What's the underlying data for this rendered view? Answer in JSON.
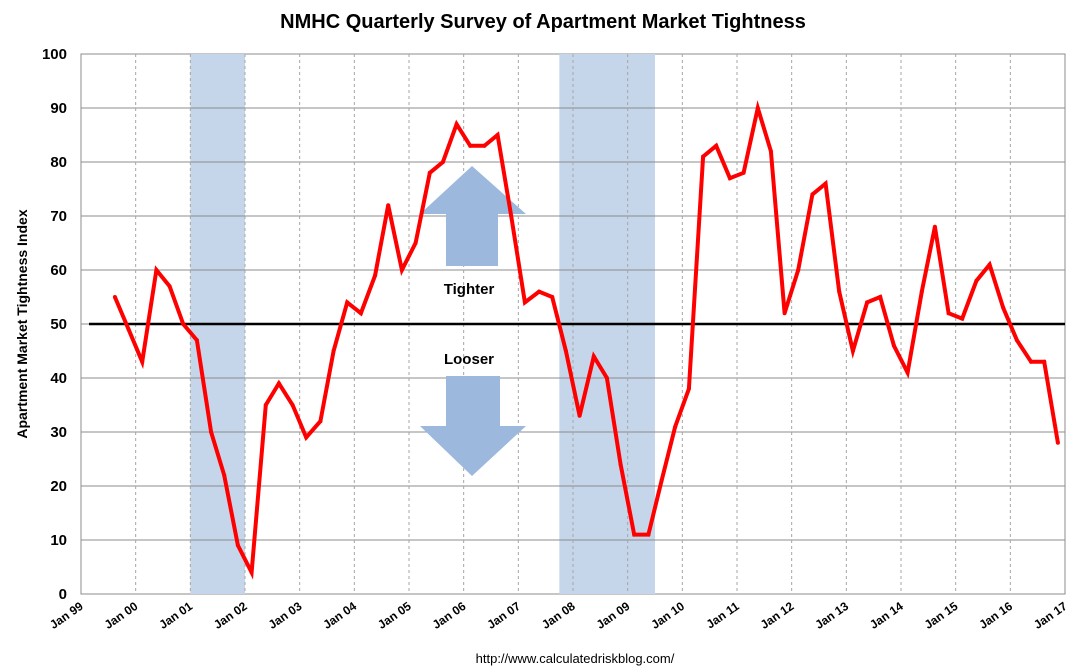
{
  "chart_data": {
    "type": "line",
    "title": "NMHC Quarterly Survey of Apartment Market Tightness",
    "ylabel": "Apartment Market Tightness Index",
    "xlabel": "",
    "ylim": [
      0,
      100
    ],
    "yticks": [
      0,
      10,
      20,
      30,
      40,
      50,
      60,
      70,
      80,
      90,
      100
    ],
    "xlim": [
      1999,
      2017
    ],
    "xticks": [
      {
        "value": 1999,
        "label": "Jan 99"
      },
      {
        "value": 2000,
        "label": "Jan 00"
      },
      {
        "value": 2001,
        "label": "Jan 01"
      },
      {
        "value": 2002,
        "label": "Jan 02"
      },
      {
        "value": 2003,
        "label": "Jan 03"
      },
      {
        "value": 2004,
        "label": "Jan 04"
      },
      {
        "value": 2005,
        "label": "Jan 05"
      },
      {
        "value": 2006,
        "label": "Jan 06"
      },
      {
        "value": 2007,
        "label": "Jan 07"
      },
      {
        "value": 2008,
        "label": "Jan 08"
      },
      {
        "value": 2009,
        "label": "Jan 09"
      },
      {
        "value": 2010,
        "label": "Jan 10"
      },
      {
        "value": 2011,
        "label": "Jan 11"
      },
      {
        "value": 2012,
        "label": "Jan 12"
      },
      {
        "value": 2013,
        "label": "Jan 13"
      },
      {
        "value": 2014,
        "label": "Jan 14"
      },
      {
        "value": 2015,
        "label": "Jan 15"
      },
      {
        "value": 2016,
        "label": "Jan 16"
      },
      {
        "value": 2017,
        "label": "Jan 17"
      }
    ],
    "grid": true,
    "series": [
      {
        "color": "#ff0000",
        "x": [
          1999.62,
          1999.87,
          2000.12,
          2000.38,
          2000.62,
          2000.87,
          2001.12,
          2001.38,
          2001.62,
          2001.87,
          2002.12,
          2002.38,
          2002.62,
          2002.87,
          2003.12,
          2003.38,
          2003.62,
          2003.87,
          2004.12,
          2004.38,
          2004.62,
          2004.87,
          2005.12,
          2005.38,
          2005.62,
          2005.87,
          2006.12,
          2006.38,
          2006.62,
          2006.87,
          2007.12,
          2007.38,
          2007.62,
          2007.87,
          2008.12,
          2008.38,
          2008.62,
          2008.87,
          2009.12,
          2009.38,
          2009.62,
          2009.87,
          2010.12,
          2010.38,
          2010.62,
          2010.87,
          2011.12,
          2011.38,
          2011.62,
          2011.87,
          2012.12,
          2012.38,
          2012.62,
          2012.87,
          2013.12,
          2013.38,
          2013.62,
          2013.87,
          2014.12,
          2014.38,
          2014.62,
          2014.87,
          2015.12,
          2015.38,
          2015.62,
          2015.87,
          2016.12,
          2016.38,
          2016.62,
          2016.87
        ],
        "y": [
          55,
          49,
          43,
          60,
          57,
          50,
          47,
          30,
          22,
          9,
          4,
          35,
          39,
          35,
          29,
          32,
          45,
          54,
          52,
          59,
          72,
          60,
          65,
          78,
          80,
          87,
          83,
          83,
          85,
          70,
          54,
          56,
          55,
          45,
          33,
          44,
          40,
          24,
          11,
          11,
          21,
          31,
          38,
          81,
          83,
          77,
          78,
          90,
          82,
          52,
          60,
          74,
          76,
          56,
          45,
          54,
          55,
          46,
          41,
          56,
          68,
          52,
          51,
          58,
          61,
          53,
          47,
          43,
          43,
          28
        ]
      }
    ],
    "recessions": [
      [
        2001.0,
        2002.0
      ],
      [
        2007.75,
        2009.5
      ]
    ],
    "reference_line": {
      "y": 50,
      "color": "#000000"
    },
    "recession_color": "#c5d6ea",
    "arrow_color": "#9cb8dc",
    "annotations": {
      "tighter": "Tighter",
      "looser": "Looser"
    },
    "source": "http://www.calculatedriskblog.com/"
  }
}
